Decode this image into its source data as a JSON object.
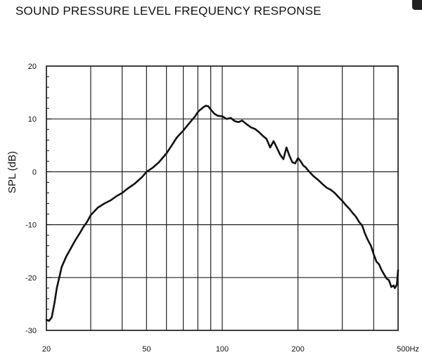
{
  "chart_data": {
    "type": "line",
    "title": "SOUND PRESSURE LEVEL FREQUENCY RESPONSE",
    "xlabel": "",
    "ylabel": "SPL (dB)",
    "x_scale": "log",
    "xlim": [
      20,
      500
    ],
    "ylim": [
      -30,
      20
    ],
    "x_tick_labels": [
      {
        "value": 20,
        "label": "20"
      },
      {
        "value": 50,
        "label": "50"
      },
      {
        "value": 100,
        "label": "100"
      },
      {
        "value": 200,
        "label": "200"
      },
      {
        "value": 500,
        "label": "500Hz"
      }
    ],
    "y_ticks": [
      -30,
      -20,
      -10,
      0,
      10,
      20
    ],
    "grid": true,
    "legend": "none",
    "line_color": "#111111",
    "series": [
      {
        "x": [
          20,
          20.5,
          21,
          21.5,
          22,
          23,
          24,
          25,
          26,
          27,
          28,
          29,
          30,
          32,
          34,
          36,
          38,
          40,
          42,
          45,
          48,
          50,
          53,
          56,
          60,
          63,
          66,
          70,
          74,
          78,
          80,
          82,
          84,
          86,
          88,
          90,
          93,
          96,
          100,
          104,
          108,
          112,
          116,
          120,
          125,
          130,
          135,
          140,
          145,
          150,
          155,
          160,
          165,
          170,
          175,
          180,
          185,
          190,
          195,
          200,
          205,
          210,
          215,
          220,
          230,
          240,
          250,
          260,
          270,
          280,
          290,
          300,
          310,
          320,
          330,
          340,
          350,
          360,
          370,
          380,
          390,
          400,
          410,
          420,
          430,
          440,
          450,
          460,
          470,
          480,
          485,
          490,
          495,
          500
        ],
        "y": [
          -28,
          -28.2,
          -27.5,
          -25,
          -22,
          -18,
          -16,
          -14.5,
          -13,
          -11.8,
          -10.5,
          -9.5,
          -8.2,
          -6.8,
          -6,
          -5.4,
          -4.6,
          -4,
          -3.2,
          -2.2,
          -1,
          0,
          0.8,
          1.8,
          3.5,
          5,
          6.5,
          7.8,
          9.2,
          10.5,
          11.3,
          11.8,
          12.2,
          12.5,
          12.4,
          11.8,
          11.0,
          10.6,
          10.5,
          10.0,
          10.2,
          9.6,
          9.4,
          9.7,
          9.0,
          8.4,
          8.1,
          7.5,
          6.8,
          6.2,
          4.6,
          5.8,
          4.5,
          3.2,
          2.4,
          4.6,
          3.0,
          1.8,
          1.6,
          2.6,
          2.0,
          1.2,
          0.8,
          0.2,
          -0.8,
          -1.5,
          -2.3,
          -3.0,
          -3.4,
          -4.0,
          -4.8,
          -5.5,
          -6.3,
          -7.0,
          -7.8,
          -8.5,
          -9.5,
          -10.2,
          -11.8,
          -13.0,
          -14.0,
          -15.6,
          -17.0,
          -17.5,
          -18.6,
          -19.4,
          -20.2,
          -20.5,
          -21.8,
          -21.5,
          -22.0,
          -21.7,
          -21.2,
          -18.6
        ]
      }
    ]
  }
}
